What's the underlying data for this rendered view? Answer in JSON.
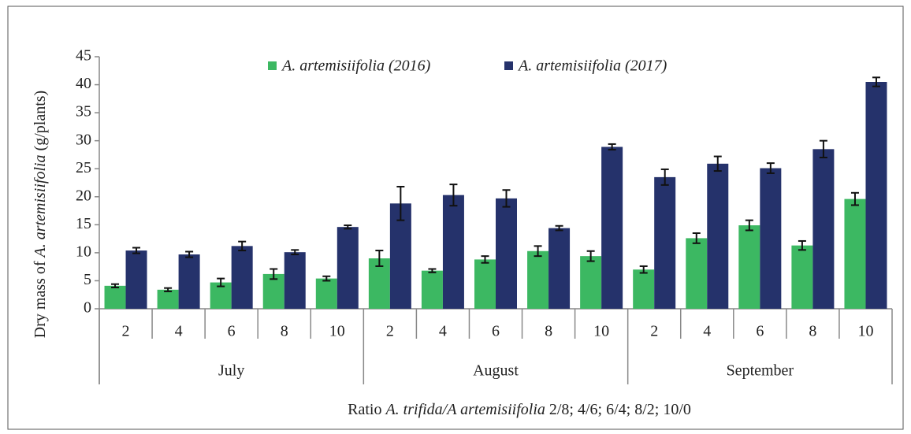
{
  "chart_data": {
    "type": "bar",
    "y_label": [
      "Dry mass of ",
      "A. artemisiifolia",
      " (g/plants)"
    ],
    "x_label": [
      "Ratio ",
      "A. trifida/A artemisiifolia",
      " 2/8; 4/6; 6/4; 8/2; 10/0"
    ],
    "categories": [
      "2",
      "4",
      "6",
      "8",
      "10",
      "2",
      "4",
      "6",
      "8",
      "10",
      "2",
      "4",
      "6",
      "8",
      "10"
    ],
    "category_groups": [
      "July",
      "August",
      "September"
    ],
    "series": [
      {
        "name": "A. artemisiifolia (2016)",
        "color": "#3cb862",
        "values": [
          4.1,
          3.4,
          4.7,
          6.2,
          5.4,
          9.0,
          6.8,
          8.8,
          10.3,
          9.4,
          7.0,
          12.6,
          14.9,
          11.3,
          19.6
        ],
        "errors": [
          0.3,
          0.3,
          0.7,
          0.9,
          0.4,
          1.4,
          0.3,
          0.6,
          0.9,
          0.9,
          0.6,
          0.9,
          0.9,
          0.8,
          1.1
        ]
      },
      {
        "name": "A. artemisiifolia (2017)",
        "color": "#25326b",
        "values": [
          10.4,
          9.7,
          11.2,
          10.1,
          14.6,
          18.8,
          20.3,
          19.7,
          14.4,
          28.9,
          23.5,
          25.9,
          25.1,
          28.5,
          40.5
        ],
        "errors": [
          0.5,
          0.5,
          0.8,
          0.4,
          0.3,
          3.0,
          1.9,
          1.5,
          0.4,
          0.5,
          1.4,
          1.3,
          0.9,
          1.5,
          0.8
        ]
      }
    ],
    "ylim": [
      0,
      45
    ],
    "yticks": [
      0,
      5,
      10,
      15,
      20,
      25,
      30,
      35,
      40,
      45
    ],
    "legend": "top"
  }
}
